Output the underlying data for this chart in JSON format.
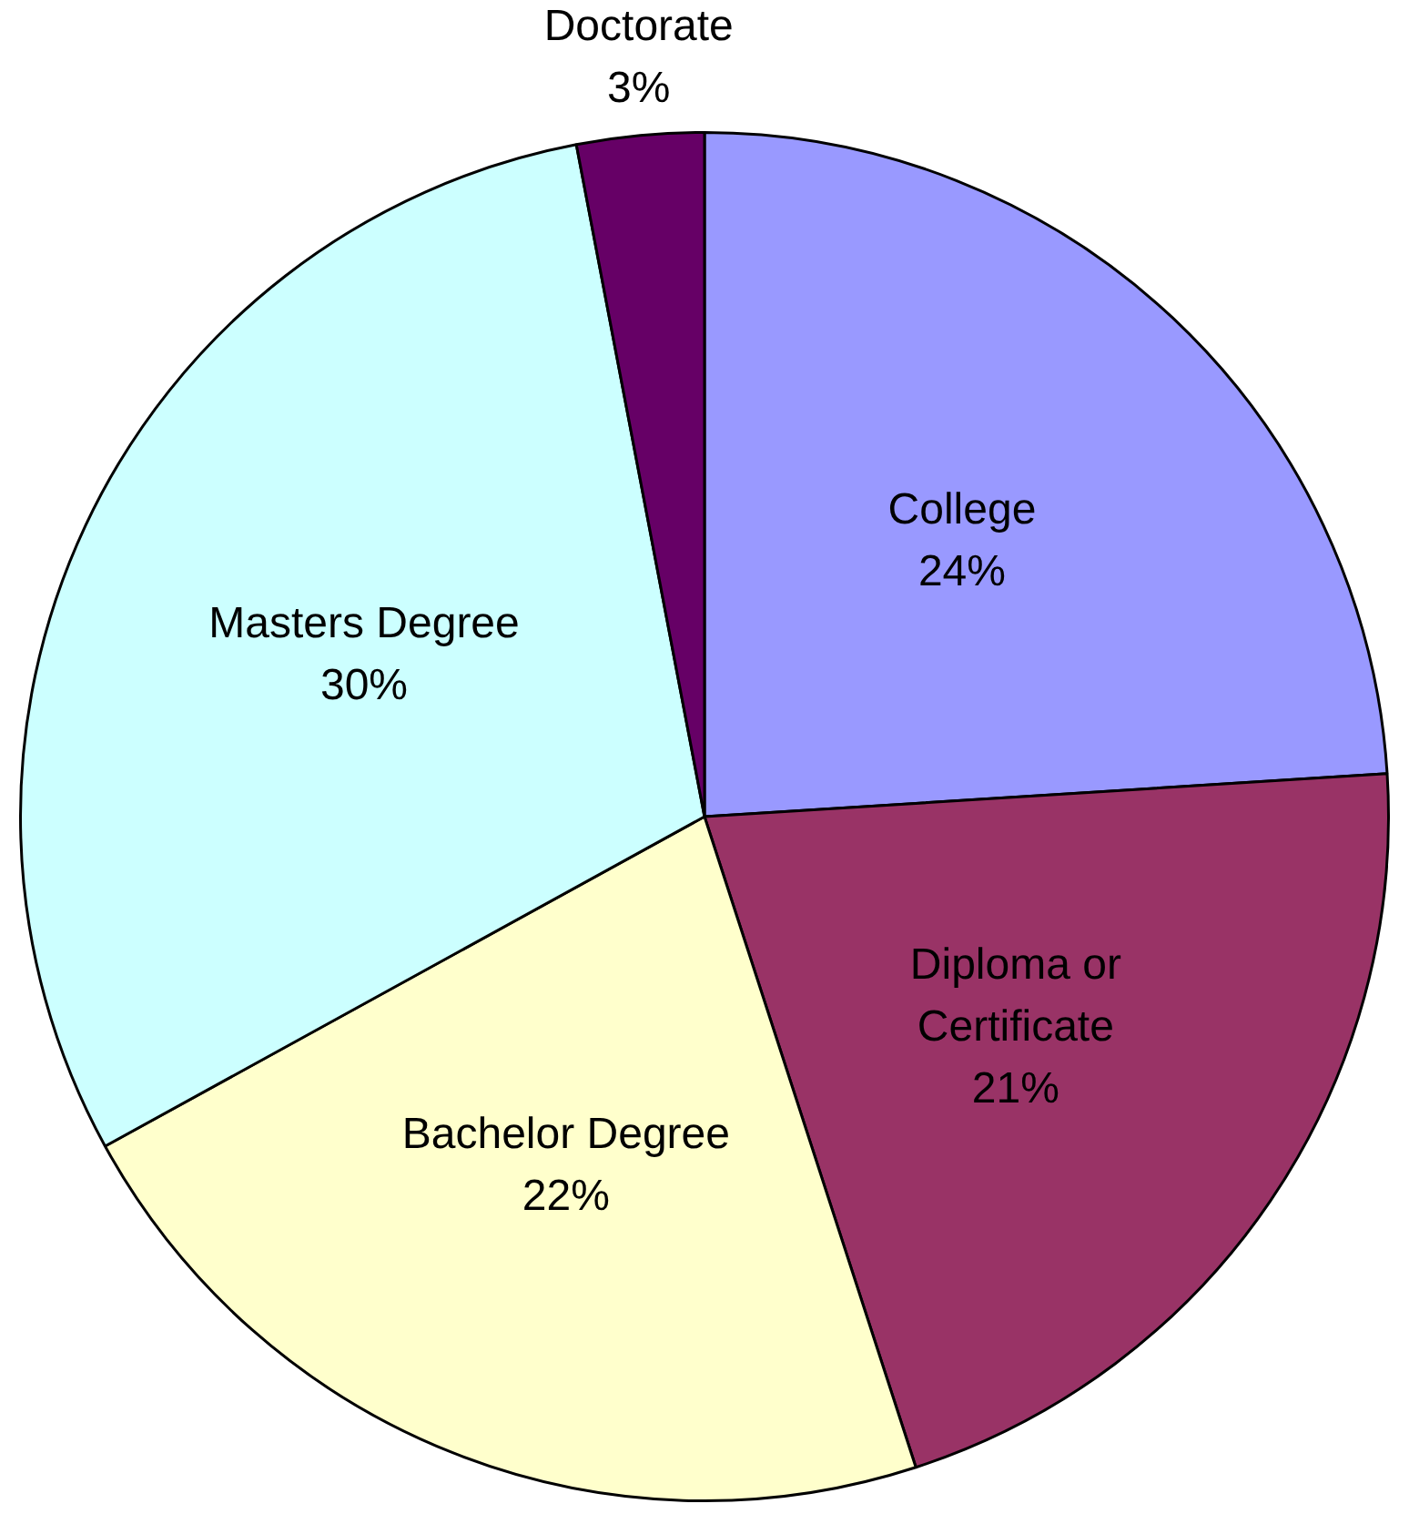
{
  "chart_data": {
    "type": "pie",
    "categories": [
      "College",
      "Diploma or Certificate",
      "Bachelor Degree",
      "Masters Degree",
      "Doctorate"
    ],
    "values": [
      24,
      21,
      22,
      30,
      3
    ],
    "colors": [
      "#9999ff",
      "#993366",
      "#ffffcc",
      "#ccffff",
      "#660066"
    ],
    "value_labels": [
      "24%",
      "21%",
      "22%",
      "30%",
      "3%"
    ],
    "legend": false
  }
}
